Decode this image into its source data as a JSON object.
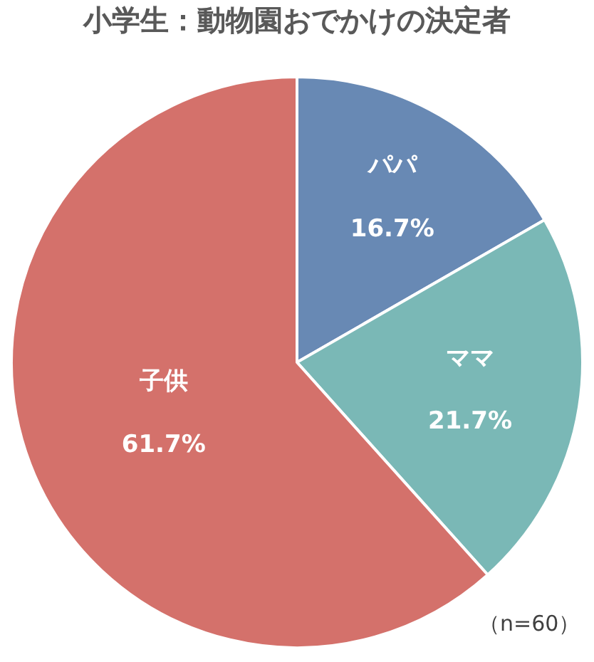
{
  "chart_data": {
    "type": "pie",
    "title": "小学生：動物園おでかけの決定者",
    "categories": [
      "パパ",
      "ママ",
      "子供"
    ],
    "values": [
      16.7,
      21.7,
      61.7
    ],
    "colors": [
      "#6889b4",
      "#7ab8b6",
      "#d4716b"
    ],
    "value_labels": [
      "16.7%",
      "21.7%",
      "61.7%"
    ],
    "annotations": [
      "（n=60）"
    ],
    "legend": false
  }
}
